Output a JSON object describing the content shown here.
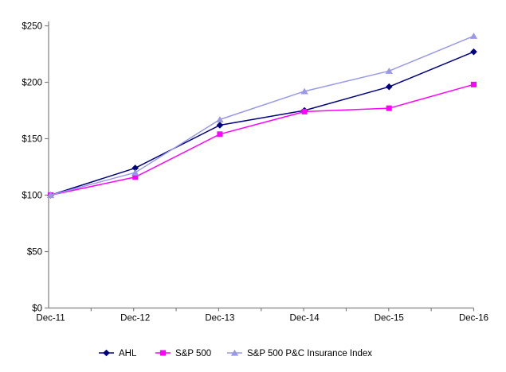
{
  "chart_data": {
    "type": "line",
    "title": "",
    "categories": [
      "Dec-11",
      "Dec-12",
      "Dec-13",
      "Dec-14",
      "Dec-15",
      "Dec-16"
    ],
    "series": [
      {
        "name": "AHL",
        "color": "#000080",
        "marker": "diamond",
        "values": [
          100,
          124,
          162,
          175,
          196,
          227
        ]
      },
      {
        "name": "S&P 500",
        "color": "#FF00FF",
        "marker": "square",
        "values": [
          100,
          116,
          154,
          174,
          177,
          198
        ]
      },
      {
        "name": "S&P 500 P&C Insurance Index",
        "color": "#9999E8",
        "marker": "triangle",
        "values": [
          100,
          120,
          167,
          192,
          210,
          241
        ]
      }
    ],
    "yticks": [
      0,
      50,
      100,
      150,
      200,
      250
    ],
    "ytick_labels": [
      "$0",
      "$50",
      "$100",
      "$150",
      "$200",
      "$250"
    ],
    "ylim": [
      0,
      250
    ],
    "xlabel": "",
    "ylabel": "",
    "grid": false,
    "legend_position": "bottom",
    "colors": {
      "axis": "#808080",
      "text": "#000000",
      "background": "#FFFFFF"
    }
  }
}
